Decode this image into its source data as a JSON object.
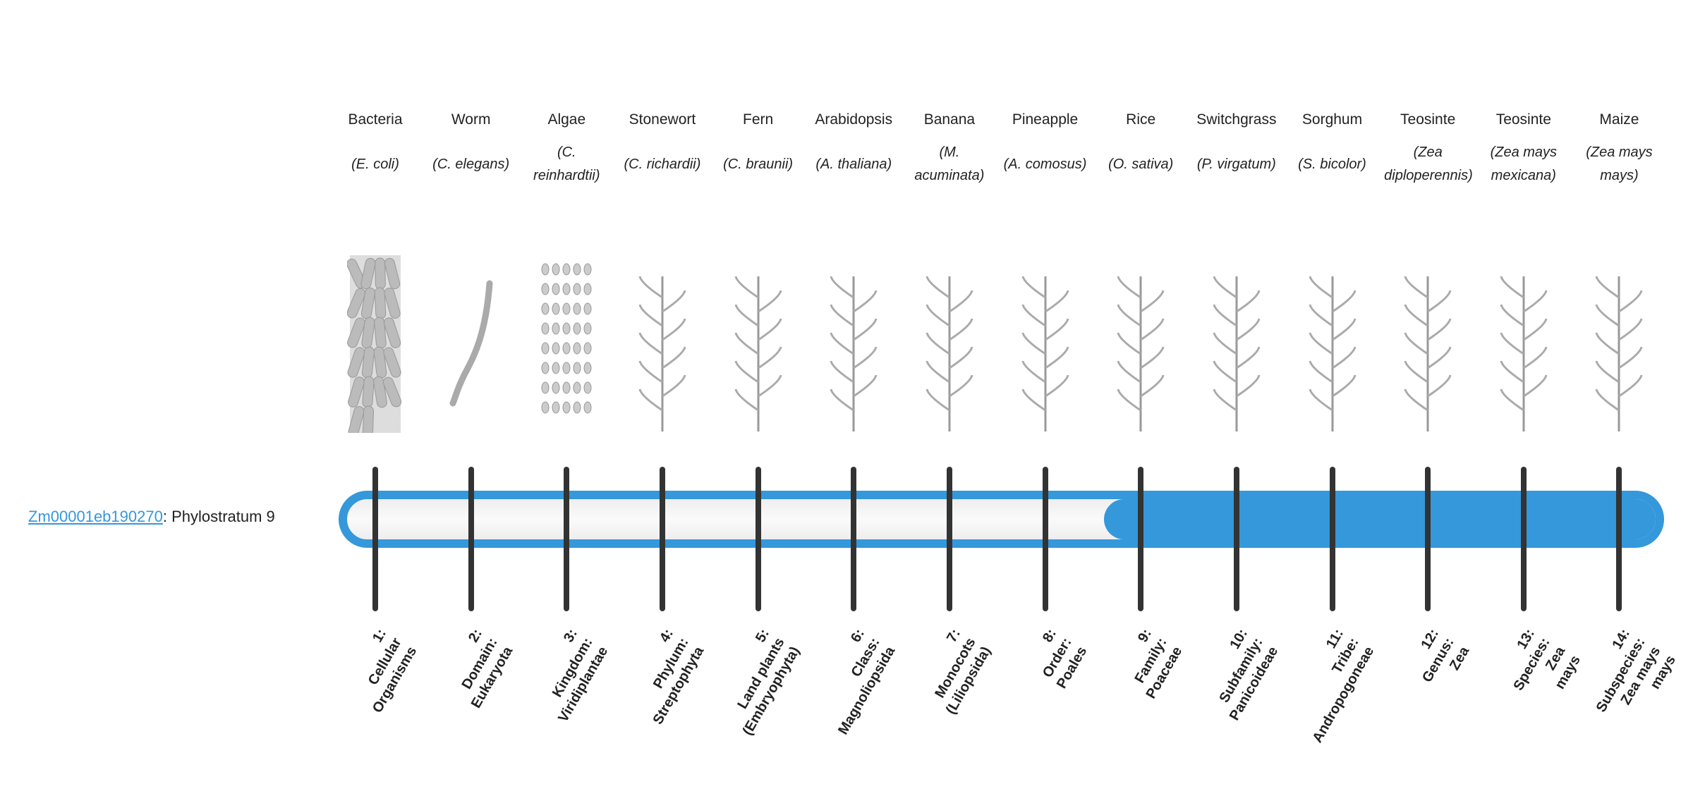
{
  "gene": {
    "id": "Zm00001eb190270",
    "separator": ": ",
    "phylostratum_text": "Phylostratum 9",
    "phylostratum": 9
  },
  "colors": {
    "accent": "#3498db",
    "tick": "#333333"
  },
  "organisms": [
    {
      "common": "Bacteria",
      "sci": "(E. coli)",
      "icon": "bacteria-icon"
    },
    {
      "common": "Worm",
      "sci": "(C. elegans)",
      "icon": "worm-icon"
    },
    {
      "common": "Algae",
      "sci": "(C. reinhardtii)",
      "icon": "algae-icon"
    },
    {
      "common": "Stonewort",
      "sci": "(C. richardii)",
      "icon": "stonewort-icon"
    },
    {
      "common": "Fern",
      "sci": "(C. braunii)",
      "icon": "fern-icon"
    },
    {
      "common": "Arabidopsis",
      "sci": "(A. thaliana)",
      "icon": "arabidopsis-icon"
    },
    {
      "common": "Banana",
      "sci": "(M. acuminata)",
      "icon": "banana-plant-icon"
    },
    {
      "common": "Pineapple",
      "sci": "(A. comosus)",
      "icon": "pineapple-icon"
    },
    {
      "common": "Rice",
      "sci": "(O. sativa)",
      "icon": "rice-plant-icon"
    },
    {
      "common": "Switchgrass",
      "sci": "(P. virgatum)",
      "icon": "switchgrass-icon"
    },
    {
      "common": "Sorghum",
      "sci": "(S. bicolor)",
      "icon": "sorghum-icon"
    },
    {
      "common": "Teosinte",
      "sci": "(Zea diploperennis)",
      "icon": "teosinte-icon"
    },
    {
      "common": "Teosinte",
      "sci": "(Zea mays mexicana)",
      "icon": "teosinte-icon"
    },
    {
      "common": "Maize",
      "sci": "(Zea mays mays)",
      "icon": "maize-icon"
    }
  ],
  "strata": [
    [
      "1:",
      "Cellular",
      "Organisms"
    ],
    [
      "2:",
      "Domain:",
      "Eukaryota"
    ],
    [
      "3:",
      "Kingdom:",
      "Viridiplantae"
    ],
    [
      "4:",
      "Phylum:",
      "Streptophyta"
    ],
    [
      "5:",
      "Land plants",
      "(Embryophyta)"
    ],
    [
      "6:",
      "Class:",
      "Magnoliopsida"
    ],
    [
      "7:",
      "Monocots",
      "(Liliopsida)"
    ],
    [
      "8:",
      "Order:",
      "Poales"
    ],
    [
      "9:",
      "Family:",
      "Poaceae"
    ],
    [
      "10:",
      "Subfamily:",
      "Panicoideae"
    ],
    [
      "11:",
      "Tribe:",
      "Andropogoneae"
    ],
    [
      "12:",
      "Genus:",
      "Zea"
    ],
    [
      "13:",
      "Species:",
      "Zea",
      "mays"
    ],
    [
      "14:",
      "Subspecies:",
      "Zea mays",
      "mays"
    ]
  ]
}
